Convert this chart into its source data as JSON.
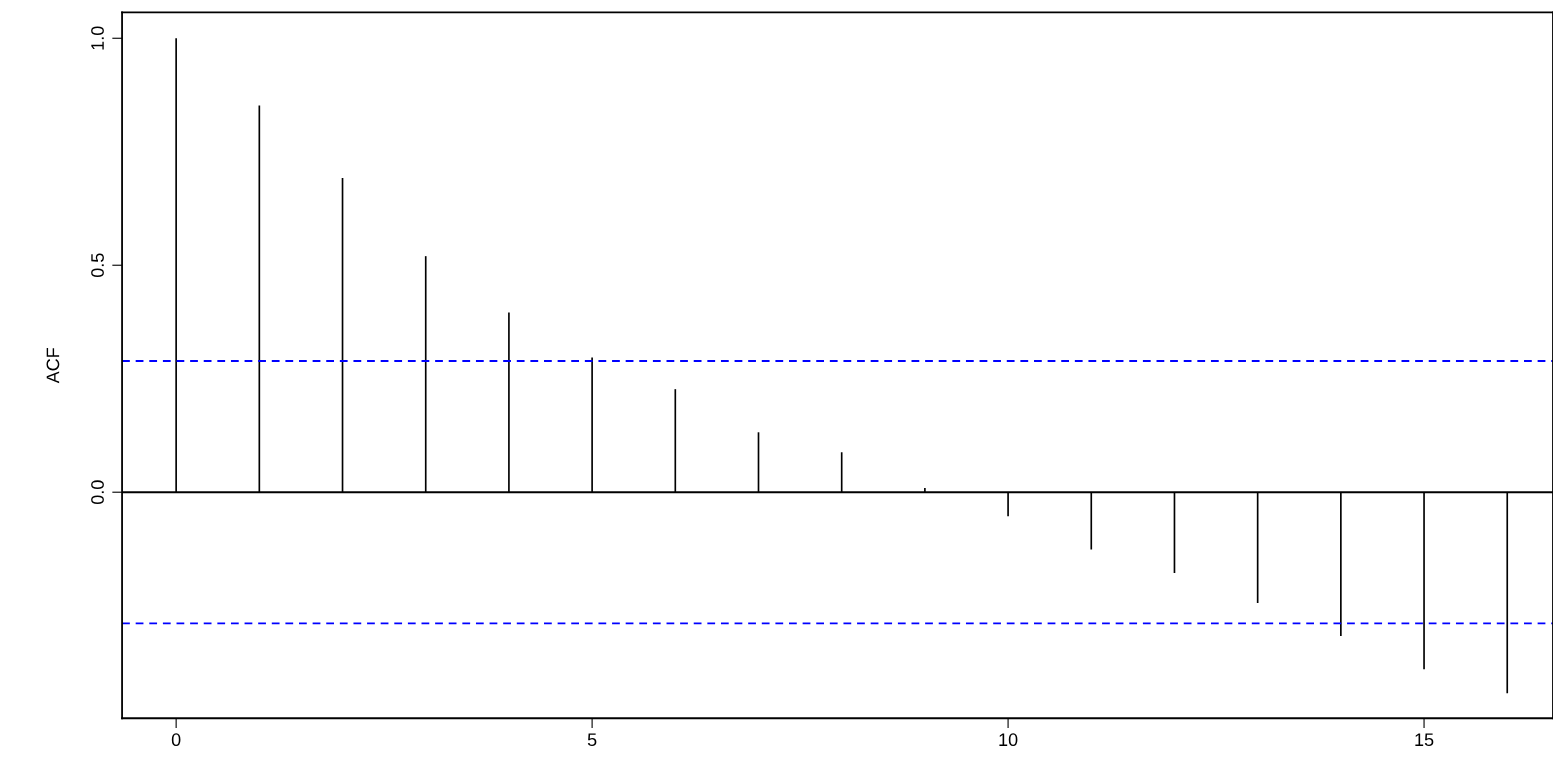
{
  "chart_data": {
    "type": "bar",
    "ylabel": "ACF",
    "x": [
      0,
      1,
      2,
      3,
      4,
      5,
      6,
      7,
      8,
      9,
      10,
      11,
      12,
      13,
      14,
      15,
      16
    ],
    "values": [
      1.0,
      0.852,
      0.692,
      0.52,
      0.396,
      0.297,
      0.227,
      0.132,
      0.088,
      0.009,
      -0.053,
      -0.126,
      -0.178,
      -0.244,
      -0.317,
      -0.39,
      -0.443
    ],
    "color": "#000000",
    "xlim": [
      -0.65,
      16.55
    ],
    "xticks": [
      0,
      5,
      10,
      15
    ],
    "ylim": [
      -0.498,
      1.057
    ],
    "yticks": [
      {
        "value": 0,
        "label": "0.0"
      },
      {
        "value": 0.5,
        "label": "0.5"
      },
      {
        "value": 1,
        "label": "1.0"
      }
    ],
    "ref_lines": [
      {
        "axis": "y",
        "value": 0,
        "color": "#000000",
        "line_style": "solid"
      },
      {
        "axis": "y",
        "value": 0.289,
        "color": "#0000ff",
        "line_style": "dashed"
      },
      {
        "axis": "y",
        "value": -0.289,
        "color": "#0000ff",
        "line_style": "dashed"
      }
    ],
    "grid": false
  }
}
